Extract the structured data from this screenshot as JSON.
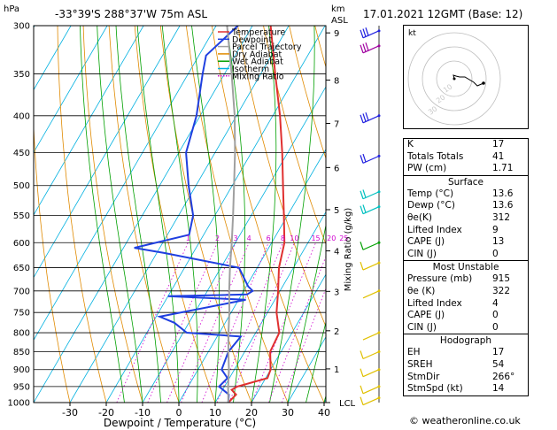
{
  "header": {
    "hpa_label": "hPa",
    "location": "-33°39'S  288°37'W  75m  ASL",
    "km_label": "km",
    "asl_label": "ASL",
    "datetime": "17.01.2021  12GMT  (Base: 12)"
  },
  "legend": [
    {
      "label": "Temperature",
      "color": "#e03030",
      "style": "solid"
    },
    {
      "label": "Dewpoint",
      "color": "#1f3fe0",
      "style": "solid"
    },
    {
      "label": "Parcel Trajectory",
      "color": "#a0a0a0",
      "style": "solid"
    },
    {
      "label": "Dry Adiabat",
      "color": "#e08a00",
      "style": "solid"
    },
    {
      "label": "Wet Adiabat",
      "color": "#00a000",
      "style": "solid"
    },
    {
      "label": "Isotherm",
      "color": "#00b0e0",
      "style": "solid"
    },
    {
      "label": "Mixing Ratio",
      "color": "#d000d0",
      "style": "dotted"
    }
  ],
  "chart_data": {
    "type": "line",
    "title": "",
    "xlabel": "Dewpoint / Temperature (°C)",
    "ylabel": "hPa",
    "y2label": "Mixing Ratio (g/kg)",
    "km_axis_label": "km ASL",
    "xlim": [
      -35,
      40
    ],
    "ylim": [
      1000,
      300
    ],
    "x_ticks": [
      -30,
      -20,
      -10,
      0,
      10,
      20,
      30,
      40
    ],
    "x_tick_labels": [
      "-30",
      "-20",
      "-10",
      "0",
      "10",
      "20",
      "30",
      "40"
    ],
    "pressure_levels": [
      300,
      350,
      400,
      450,
      500,
      550,
      600,
      650,
      700,
      750,
      800,
      850,
      900,
      950,
      1000
    ],
    "pressure_labels": [
      "300",
      "350",
      "400",
      "450",
      "500",
      "550",
      "600",
      "650",
      "700",
      "750",
      "800",
      "850",
      "900",
      "950",
      "1000"
    ],
    "km_ticks": [
      {
        "label": "9",
        "p": 307
      },
      {
        "label": "8",
        "p": 357
      },
      {
        "label": "7",
        "p": 410
      },
      {
        "label": "6",
        "p": 472
      },
      {
        "label": "5",
        "p": 540
      },
      {
        "label": "4",
        "p": 616
      },
      {
        "label": "3",
        "p": 701
      },
      {
        "label": "2",
        "p": 795
      },
      {
        "label": "1",
        "p": 898
      },
      {
        "label": "LCL",
        "p": 1000
      }
    ],
    "mixing_ratio_labels": [
      "1",
      "2",
      "3",
      "4",
      "6",
      "8",
      "10",
      "15",
      "20",
      "25"
    ],
    "mixing_ratio_values": [
      1,
      2,
      3,
      4,
      6,
      8,
      10,
      15,
      20,
      25
    ],
    "series": [
      {
        "name": "Temperature",
        "color": "#e03030",
        "points": [
          {
            "p": 1000,
            "t": 13.6
          },
          {
            "p": 975,
            "t": 14.5
          },
          {
            "p": 960,
            "t": 12.5
          },
          {
            "p": 950,
            "t": 13.5
          },
          {
            "p": 925,
            "t": 20.5
          },
          {
            "p": 900,
            "t": 20.0
          },
          {
            "p": 850,
            "t": 17.0
          },
          {
            "p": 800,
            "t": 16.5
          },
          {
            "p": 750,
            "t": 12.5
          },
          {
            "p": 700,
            "t": 9.5
          },
          {
            "p": 650,
            "t": 6.0
          },
          {
            "p": 600,
            "t": 3.5
          },
          {
            "p": 550,
            "t": -1.0
          },
          {
            "p": 500,
            "t": -6.0
          },
          {
            "p": 450,
            "t": -11.5
          },
          {
            "p": 400,
            "t": -18.0
          },
          {
            "p": 350,
            "t": -26.0
          },
          {
            "p": 300,
            "t": -35.0
          }
        ]
      },
      {
        "name": "Dewpoint",
        "color": "#1f3fe0",
        "points": [
          {
            "p": 1000,
            "t": 13.6
          },
          {
            "p": 975,
            "t": 12.5
          },
          {
            "p": 950,
            "t": 8.5
          },
          {
            "p": 925,
            "t": 9.5
          },
          {
            "p": 900,
            "t": 6.5
          },
          {
            "p": 850,
            "t": 5.5
          },
          {
            "p": 810,
            "t": 6.5
          },
          {
            "p": 800,
            "t": -9.0
          },
          {
            "p": 775,
            "t": -14.0
          },
          {
            "p": 760,
            "t": -19.0
          },
          {
            "p": 720,
            "t": 2.0
          },
          {
            "p": 712,
            "t": -20.0
          },
          {
            "p": 708,
            "t": 1.5
          },
          {
            "p": 700,
            "t": 2.5
          },
          {
            "p": 690,
            "t": 0.5
          },
          {
            "p": 650,
            "t": -5.0
          },
          {
            "p": 620,
            "t": -28.0
          },
          {
            "p": 610,
            "t": -37.0
          },
          {
            "p": 585,
            "t": -24.0
          },
          {
            "p": 550,
            "t": -26.0
          },
          {
            "p": 500,
            "t": -32.0
          },
          {
            "p": 450,
            "t": -38.0
          },
          {
            "p": 400,
            "t": -41.0
          },
          {
            "p": 350,
            "t": -46.0
          },
          {
            "p": 330,
            "t": -48.0
          },
          {
            "p": 300,
            "t": -44.0
          }
        ]
      },
      {
        "name": "Parcel Trajectory",
        "color": "#a0a0a0",
        "points": [
          {
            "p": 1000,
            "t": 13.6
          },
          {
            "p": 950,
            "t": 11.0
          },
          {
            "p": 900,
            "t": 8.5
          },
          {
            "p": 850,
            "t": 5.5
          },
          {
            "p": 800,
            "t": 2.5
          },
          {
            "p": 750,
            "t": -0.5
          },
          {
            "p": 700,
            "t": -4.0
          },
          {
            "p": 650,
            "t": -7.5
          },
          {
            "p": 600,
            "t": -11.0
          },
          {
            "p": 550,
            "t": -15.0
          },
          {
            "p": 500,
            "t": -19.5
          },
          {
            "p": 450,
            "t": -24.5
          },
          {
            "p": 400,
            "t": -30.5
          },
          {
            "p": 350,
            "t": -38.0
          },
          {
            "p": 300,
            "t": -47.0
          }
        ]
      }
    ],
    "wind_barbs": [
      {
        "p": 305,
        "color": "#2020e0",
        "flags": 3
      },
      {
        "p": 320,
        "color": "#a000a0",
        "flags": 3
      },
      {
        "p": 400,
        "color": "#2020e0",
        "flags": 3
      },
      {
        "p": 455,
        "color": "#2020e0",
        "flags": 2
      },
      {
        "p": 510,
        "color": "#00c0c0",
        "flags": 2
      },
      {
        "p": 535,
        "color": "#00c0c0",
        "flags": 2
      },
      {
        "p": 600,
        "color": "#00a000",
        "flags": 1
      },
      {
        "p": 640,
        "color": "#e0c000",
        "flags": 1
      },
      {
        "p": 700,
        "color": "#e0c000",
        "flags": 0
      },
      {
        "p": 800,
        "color": "#e0c000",
        "flags": 0
      },
      {
        "p": 850,
        "color": "#e0c000",
        "flags": 1
      },
      {
        "p": 900,
        "color": "#e0c000",
        "flags": 1
      },
      {
        "p": 950,
        "color": "#e0c000",
        "flags": 1
      },
      {
        "p": 985,
        "color": "#e0c000",
        "flags": 1
      }
    ]
  },
  "hodograph": {
    "label": "kt",
    "ring_labels": [
      "10",
      "20",
      "30"
    ],
    "trace": [
      [
        0,
        0
      ],
      [
        -1,
        -4
      ],
      [
        2,
        -3
      ],
      [
        6,
        -2
      ],
      [
        12,
        -2
      ],
      [
        22,
        4
      ],
      [
        26,
        8
      ],
      [
        33,
        5
      ]
    ]
  },
  "indices": [
    {
      "label": "K",
      "value": "17"
    },
    {
      "label": "Totals Totals",
      "value": "41"
    },
    {
      "label": "PW (cm)",
      "value": "1.71"
    }
  ],
  "surface": {
    "title": "Surface",
    "rows": [
      {
        "label": "Temp (°C)",
        "value": "13.6"
      },
      {
        "label": "Dewp (°C)",
        "value": "13.6"
      },
      {
        "label": "θe(K)",
        "value": "312"
      },
      {
        "label": "Lifted Index",
        "value": "9"
      },
      {
        "label": "CAPE (J)",
        "value": "13"
      },
      {
        "label": "CIN (J)",
        "value": "0"
      }
    ]
  },
  "most_unstable": {
    "title": "Most Unstable",
    "rows": [
      {
        "label": "Pressure (mb)",
        "value": "915"
      },
      {
        "label": "θe (K)",
        "value": "322"
      },
      {
        "label": "Lifted Index",
        "value": "4"
      },
      {
        "label": "CAPE (J)",
        "value": "0"
      },
      {
        "label": "CIN (J)",
        "value": "0"
      }
    ]
  },
  "hodograph_stats": {
    "title": "Hodograph",
    "rows": [
      {
        "label": "EH",
        "value": "17"
      },
      {
        "label": "SREH",
        "value": "54"
      },
      {
        "label": "StmDir",
        "value": "266°"
      },
      {
        "label": "StmSpd (kt)",
        "value": "14"
      }
    ]
  },
  "footer": "© weatheronline.co.uk"
}
